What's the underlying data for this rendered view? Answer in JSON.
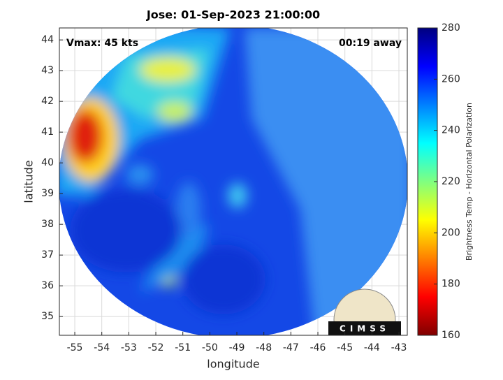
{
  "chart_data": {
    "type": "map",
    "title": "Jose: 01-Sep-2023 21:00:00",
    "annotations": [
      "Vmax: 45 kts",
      "00:19 away"
    ],
    "xlabel": "longitude",
    "ylabel": "latitude",
    "xlim": [
      -55.57,
      -42.69
    ],
    "xticks": [
      -55,
      -54,
      -53,
      -52,
      -51,
      -50,
      -49,
      -48,
      -47,
      -46,
      -45,
      -44,
      -43
    ],
    "ylim": [
      34.39,
      44.39
    ],
    "yticks": [
      35,
      36,
      37,
      38,
      39,
      40,
      41,
      42,
      43,
      44
    ],
    "grid": true,
    "colorbar": {
      "label": "Brightness Temp - Horizontal Polarization",
      "lim": [
        160,
        280
      ],
      "ticks": [
        160,
        180,
        200,
        220,
        240,
        260,
        280
      ],
      "colormap": [
        "#800000",
        "#ff0000",
        "#ff8000",
        "#ffff00",
        "#80ff80",
        "#00ffff",
        "#0080ff",
        "#0000ff",
        "#000080"
      ]
    },
    "logo_text": "CIMSS"
  }
}
